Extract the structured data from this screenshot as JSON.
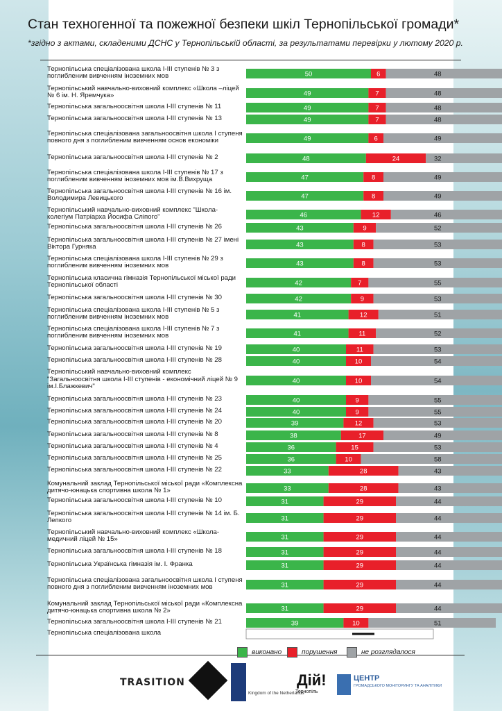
{
  "header": {
    "title": "Стан техногенної та пожежної безпеки шкіл Тернопільської громади*",
    "subtitle": "*згідно з актами, складеними ДСНС у Тернопільській області, за результатами перевірки у лютому 2020 р."
  },
  "legend": {
    "done": "виконано",
    "violations": "порушення",
    "not_considered": "не розглядалося"
  },
  "colors": {
    "done": "#3bb54a",
    "violations": "#e8202a",
    "not_considered": "#9fa3a6"
  },
  "sponsors": {
    "transition": "TRASITION",
    "netherlands": "Kingdom of the Netherlands",
    "dii": "Дій!",
    "dii_sub": "Тернопіль",
    "centre_main": "ЦЕНТР",
    "centre_sub": "ГРОМАДСЬКОГО МОНІТОРИНГУ ТА АНАЛІТИКИ"
  },
  "chart_data": {
    "type": "bar",
    "stacked": true,
    "orientation": "horizontal",
    "series": [
      {
        "name": "виконано",
        "values": [
          50,
          49,
          49,
          49,
          49,
          48,
          47,
          47,
          46,
          43,
          43,
          43,
          42,
          42,
          41,
          41,
          40,
          40,
          40,
          40,
          40,
          39,
          38,
          36,
          36,
          33,
          33,
          31,
          31,
          31,
          31,
          31,
          31,
          31,
          39,
          null
        ]
      },
      {
        "name": "порушення",
        "values": [
          6,
          7,
          7,
          7,
          6,
          24,
          8,
          8,
          12,
          9,
          8,
          8,
          7,
          9,
          12,
          11,
          11,
          10,
          10,
          9,
          9,
          12,
          17,
          15,
          10,
          28,
          28,
          29,
          29,
          29,
          29,
          29,
          29,
          29,
          10,
          null
        ]
      },
      {
        "name": "не розглядалося",
        "values": [
          48,
          48,
          48,
          48,
          49,
          32,
          49,
          49,
          46,
          52,
          53,
          53,
          55,
          53,
          51,
          52,
          53,
          54,
          54,
          55,
          55,
          53,
          49,
          53,
          58,
          43,
          43,
          44,
          44,
          44,
          44,
          44,
          44,
          44,
          51,
          null
        ]
      }
    ],
    "categories": [
      "Тернопільська спеціалізована школа І-ІІІ ступенів № 3 з поглибленим вивченням іноземних мов",
      "Тернопільський навчально-виховний комплекс «Школа –ліцей № 6 ім. Н. Яремчука»",
      "Тернопільська загальноосвітня школа І-ІІІ ступенів № 11",
      "Тернопільська загальноосвітня школа І-ІІІ ступенів № 13",
      "Тернопільська спеціалізована загальноосвітня школа І ступеня повного дня з поглибленим вивченням основ економіки",
      "Тернопільська загальноосвітня школа І-ІІІ ступенів № 2",
      "Тернопільська спеціалізована школа І-ІІІ ступенів № 17 з поглибленим вивченням іноземних мов ім.В.Вихруща",
      "Тернопільська загальноосвітня школа І-ІІІ ступенів № 16 ім. Володимира Левицького",
      "Тернопільський навчально-виховний комплекс \"Школа-колегіум Патріарха Йосифа Сліпого\"",
      "Тернопільська загальноосвітня школа І-ІІІ ступенів № 26",
      "Тернопільська загальноосвітня школа І-ІІІ ступенів № 27 імені Віктора Гурняка",
      "Тернопільська спеціалізована школа І-ІІІ ступенів № 29 з поглибленим вивченням іноземних мов",
      "Тернопільська класична гімназія Тернопільської міської ради Тернопільської області",
      "Тернопільська загальноосвітня школа І-ІІІ ступенів № 30",
      "Тернопільська спеціалізована школа І-ІІІ ступенів № 5 з поглибленим вивченням іноземних мов",
      "Тернопільська спеціалізована школа І-ІІІ ступенів № 7 з поглибленим вивченням іноземних мов",
      "Тернопільська загальноосвітня школа І-ІІІ ступенів № 19",
      "Тернопільська загальноосвітня школа І-ІІІ ступенів № 28",
      "Тернопільський навчально-виховний комплекс \"Загальноосвітня школа І-ІІІ ступенів - економічний ліцей № 9 ім.І.Блажкевич\"",
      "Тернопільська загальноосвітня школа І-ІІІ ступенів № 23",
      "Тернопільська загальноосвітня школа І-ІІІ ступенів № 24",
      "Тернопільська загальноосвітня школа І-ІІІ ступенів № 20",
      "Тернопільська загальноосвітня школа І-ІІІ ступенів № 8",
      "Тернопільська загальноосвітня школа І-ІІІ ступенів № 4",
      "Тернопільська загальноосвітня школа І-ІІІ ступенів № 25",
      "Тернопільська загальноосвітня школа І-ІІІ ступенів № 22",
      "Комунальний заклад Тернопільської міської ради «Комплексна дитячо-юнацька спортивна школа № 1»",
      "Тернопільська загальноосвітня школа І-ІІІ ступенів № 10",
      "Тернопільська загальноосвітня школа І-ІІІ ступенів № 14 ім. Б. Лепкого",
      "Тернопільський навчально-виховний комплекс «Школа-медичний ліцей № 15»",
      "Тернопільська загальноосвітня школа І-ІІІ ступенів № 18",
      "Тернопільська Українська гімназія ім. І. Франка",
      "Тернопільська спеціалізована загальноосвітня школа І ступеня повного дня з поглибленим вивченням іноземних мов",
      "Комунальний заклад Тернопільської міської ради «Комплексна дитячо-юнацька спортивна школа № 2»",
      "Тернопільська загальноосвітня школа І-ІІІ ступенів № 21",
      "Тернопільська спеціалізована школа"
    ],
    "legend_position": "bottom"
  }
}
